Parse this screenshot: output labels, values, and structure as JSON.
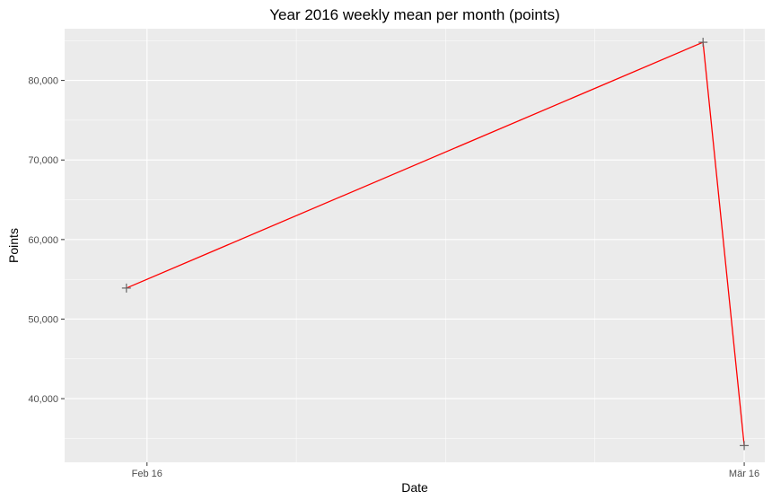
{
  "chart_data": {
    "type": "line",
    "title": "Year 2016 weekly mean per month (points)",
    "xlabel": "Date",
    "ylabel": "Points",
    "x_axis_type": "date",
    "xlim": [
      "2016-02-12",
      "2016-03-17"
    ],
    "ylim": [
      32000,
      86500
    ],
    "x_ticks": [
      {
        "value": "2016-02-16",
        "label": "Feb 16"
      },
      {
        "value": "2016-03-16",
        "label": "Mär 16"
      }
    ],
    "y_ticks": [
      {
        "value": 40000,
        "label": "40,000"
      },
      {
        "value": 50000,
        "label": "50,000"
      },
      {
        "value": 60000,
        "label": "60,000"
      },
      {
        "value": 70000,
        "label": "70,000"
      },
      {
        "value": 80000,
        "label": "80,000"
      }
    ],
    "grid": true,
    "legend": "none",
    "series": [
      {
        "line_color": "#ff0000",
        "marker": "plus",
        "marker_color": "#666666",
        "points": [
          {
            "x": "2016-02-15",
            "y": 53900
          },
          {
            "x": "2016-03-14",
            "y": 84800
          },
          {
            "x": "2016-03-16",
            "y": 34100
          }
        ]
      }
    ],
    "panel_color": "#ebebeb",
    "grid_color": "#ffffff"
  }
}
